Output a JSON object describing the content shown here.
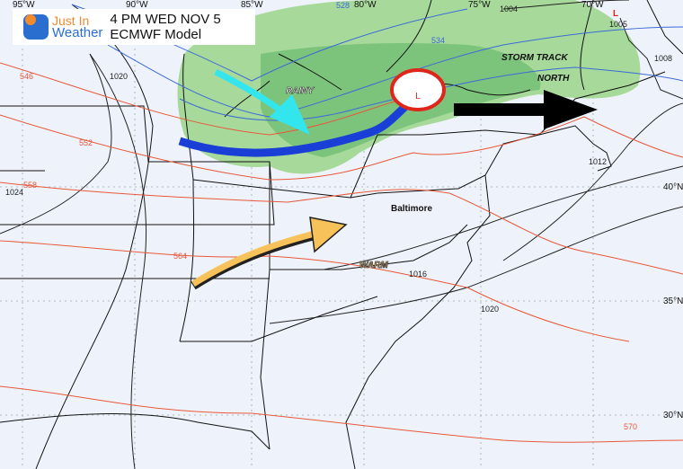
{
  "title": {
    "line1": "4 PM WED NOV 5",
    "line2": "ECMWF Model"
  },
  "brand": {
    "line1": "Just In",
    "line2": "Weather"
  },
  "longitudes": [
    "95°W",
    "90°W",
    "85°W",
    "80°W",
    "75°W",
    "70°W"
  ],
  "latitudes": [
    "40°N",
    "35°N",
    "30°N"
  ],
  "heights": [
    "528",
    "534",
    "546",
    "552",
    "558",
    "564",
    "570"
  ],
  "isobars": [
    "1004",
    "1005",
    "1008",
    "1012",
    "1016",
    "1020",
    "1020",
    "1024"
  ],
  "annotations": {
    "rainy": "RAINY",
    "storm_line1": "STORM TRACK",
    "storm_line2": "NORTH",
    "city": "Baltimore",
    "warm": "WARM",
    "low_center": "L",
    "low_ne": "L"
  },
  "colors": {
    "rain_light": "#a6d99a",
    "rain_mid": "#7cc47c",
    "cold_front": "#1a3fd6",
    "cold_arrow": "#33e6ee",
    "warm_arrow": "#f7c25a",
    "heights": "#e8583a",
    "thickness": "#3c6ad8",
    "low": "#e0251b"
  }
}
